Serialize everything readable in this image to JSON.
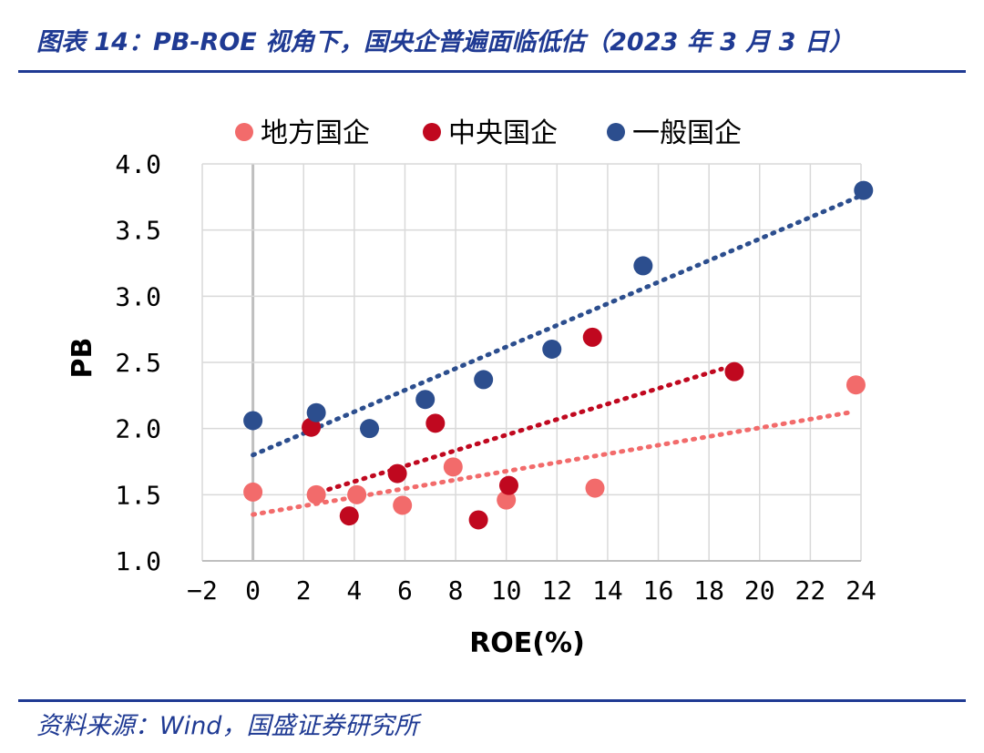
{
  "header": {
    "title": "图表 14：PB-ROE 视角下，国央企普遍面临低估（2023 年 3 月 3 日）"
  },
  "footer": {
    "source": "资料来源：Wind，国盛证券研究所"
  },
  "chart_data": {
    "type": "scatter",
    "xlabel": "ROE(%)",
    "ylabel": "PB",
    "xlim": [
      -2,
      24
    ],
    "ylim": [
      1.0,
      4.0
    ],
    "x_ticks": [
      "−2",
      "0",
      "2",
      "4",
      "6",
      "8",
      "10",
      "12",
      "14",
      "16",
      "18",
      "20",
      "22",
      "24"
    ],
    "y_ticks": [
      "1.0",
      "1.5",
      "2.0",
      "2.5",
      "3.0",
      "3.5",
      "4.0"
    ],
    "grid": true,
    "legend_position": "top",
    "series": [
      {
        "name": "地方国企",
        "color": "#f26b6b",
        "points": [
          [
            0.0,
            1.52
          ],
          [
            2.5,
            1.5
          ],
          [
            4.1,
            1.5
          ],
          [
            5.9,
            1.42
          ],
          [
            7.9,
            1.71
          ],
          [
            10.0,
            1.46
          ],
          [
            13.5,
            1.55
          ],
          [
            23.8,
            2.33
          ]
        ],
        "trendline": [
          [
            0.0,
            1.35
          ],
          [
            23.5,
            2.12
          ]
        ]
      },
      {
        "name": "中央国企",
        "color": "#c0081f",
        "points": [
          [
            2.3,
            2.01
          ],
          [
            3.8,
            1.34
          ],
          [
            5.7,
            1.66
          ],
          [
            7.2,
            2.04
          ],
          [
            8.9,
            1.31
          ],
          [
            10.1,
            1.57
          ],
          [
            13.4,
            2.69
          ],
          [
            19.0,
            2.43
          ]
        ],
        "trendline": [
          [
            2.3,
            1.5
          ],
          [
            18.5,
            2.45
          ]
        ]
      },
      {
        "name": "一般国企",
        "color": "#2c4e8e",
        "points": [
          [
            0.0,
            2.06
          ],
          [
            2.5,
            2.12
          ],
          [
            4.6,
            2.0
          ],
          [
            6.8,
            2.22
          ],
          [
            9.1,
            2.37
          ],
          [
            11.8,
            2.6
          ],
          [
            15.4,
            3.23
          ],
          [
            24.1,
            3.8
          ]
        ],
        "trendline": [
          [
            0.0,
            1.8
          ],
          [
            24.0,
            3.76
          ]
        ]
      }
    ]
  }
}
